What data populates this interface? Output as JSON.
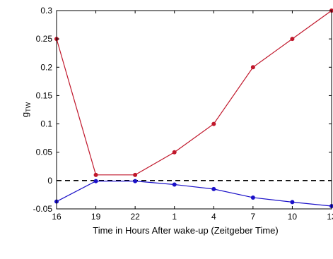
{
  "chart_data": {
    "type": "line",
    "xlabel": "Time in Hours After wake-up (Zeitgeber Time)",
    "ylabel_main": "g",
    "ylabel_sub": "TW",
    "x_tick_labels": [
      "16",
      "19",
      "22",
      "1",
      "4",
      "7",
      "10",
      "13"
    ],
    "y_ticks": [
      -0.05,
      0,
      0.05,
      0.1,
      0.15,
      0.2,
      0.25,
      0.3
    ],
    "y_tick_labels": [
      "-0.05",
      "0",
      "0.05",
      "0.1",
      "0.15",
      "0.2",
      "0.25",
      "0.3"
    ],
    "ylim": [
      -0.05,
      0.3
    ],
    "grid": false,
    "reference_line": {
      "y": 0,
      "style": "dashed",
      "color": "#000000"
    },
    "series": [
      {
        "color": "#c0172b",
        "values": [
          0.25,
          0.01,
          0.01,
          0.05,
          0.1,
          0.2,
          0.25,
          0.3
        ]
      },
      {
        "color": "#1a10c8",
        "values": [
          -0.037,
          -0.001,
          -0.001,
          -0.007,
          -0.015,
          -0.03,
          -0.038,
          -0.045
        ]
      }
    ]
  }
}
